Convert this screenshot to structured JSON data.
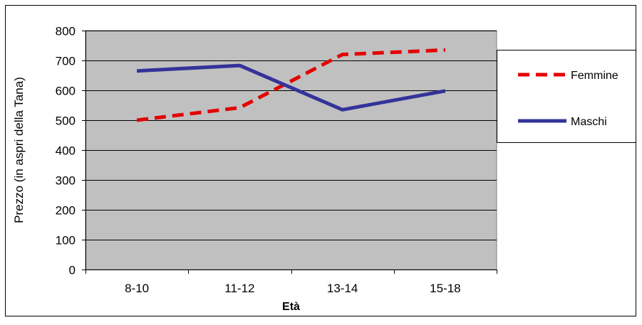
{
  "chart_data": {
    "type": "line",
    "title": "",
    "xlabel": "Età",
    "ylabel": "Prezzo (in aspri della Tana)",
    "categories": [
      "8-10",
      "11-12",
      "13-14",
      "15-18"
    ],
    "ylim": [
      0,
      800
    ],
    "yticks": [
      0,
      100,
      200,
      300,
      400,
      500,
      600,
      700,
      800
    ],
    "grid": true,
    "legend_position": "right",
    "series": [
      {
        "name": "Femmine",
        "values": [
          500,
          542,
          720,
          735
        ],
        "color": "#e40000",
        "style": "dashed"
      },
      {
        "name": "Maschi",
        "values": [
          665,
          683,
          535,
          598
        ],
        "color": "#33339a",
        "style": "solid"
      }
    ],
    "plot_background": "#c0c0c0"
  }
}
